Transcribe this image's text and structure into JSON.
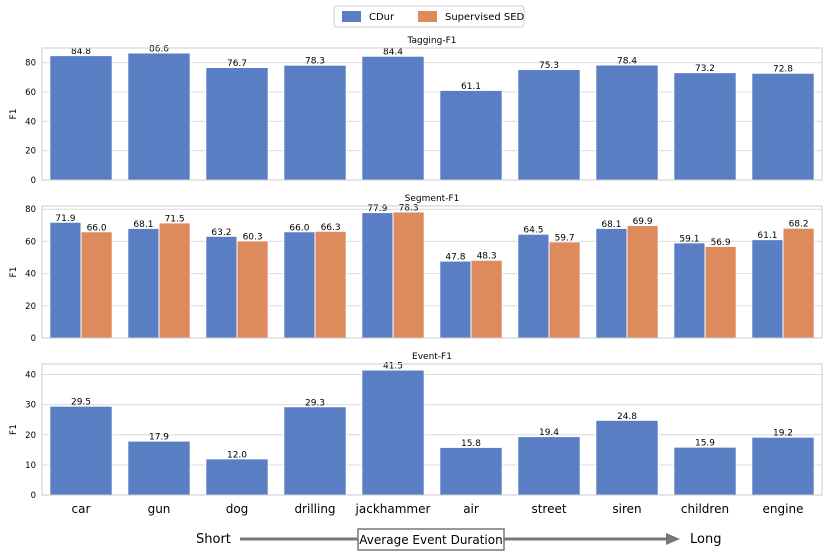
{
  "legend": {
    "items": [
      {
        "name": "CDur",
        "color": "#5a7ec3"
      },
      {
        "name": "Supervised SED",
        "color": "#dd8a5c"
      }
    ]
  },
  "duration_arrow": {
    "left_label": "Short",
    "center_label": "Average Event Duration",
    "right_label": "Long",
    "color": "#777777"
  },
  "chart_data": [
    {
      "type": "bar",
      "title": "Tagging-F1",
      "xlabel": "",
      "ylabel": "F1",
      "ylim": [
        0,
        90
      ],
      "yticks": [
        0,
        20,
        40,
        60,
        80
      ],
      "grid": true,
      "categories": [
        "car",
        "gun",
        "dog",
        "drilling",
        "jackhammer",
        "air",
        "street",
        "siren",
        "children",
        "engine"
      ],
      "series": [
        {
          "name": "CDur",
          "color": "#5a7ec3",
          "values": [
            84.8,
            86.6,
            76.7,
            78.3,
            84.4,
            61.1,
            75.3,
            78.4,
            73.2,
            72.8
          ],
          "labels": [
            "84.8",
            "86.6",
            "76.7",
            "78.3",
            "84.4",
            "61.1",
            "75.3",
            "78.4",
            "73.2",
            "72.8"
          ]
        }
      ]
    },
    {
      "type": "bar",
      "title": "Segment-F1",
      "xlabel": "",
      "ylabel": "F1",
      "ylim": [
        0,
        82
      ],
      "yticks": [
        0,
        20,
        40,
        60,
        80
      ],
      "grid": true,
      "categories": [
        "car",
        "gun",
        "dog",
        "drilling",
        "jackhammer",
        "air",
        "street",
        "siren",
        "children",
        "engine"
      ],
      "series": [
        {
          "name": "CDur",
          "color": "#5a7ec3",
          "values": [
            71.9,
            68.1,
            63.2,
            66.0,
            77.9,
            47.8,
            64.5,
            68.1,
            59.1,
            61.1
          ],
          "labels": [
            "71.9",
            "68.1",
            "63.2",
            "66.0",
            "77.9",
            "47.8",
            "64.5",
            "68.1",
            "59.1",
            "61.1"
          ]
        },
        {
          "name": "Supervised SED",
          "color": "#dd8a5c",
          "values": [
            66.0,
            71.5,
            60.3,
            66.3,
            78.3,
            48.3,
            59.7,
            69.9,
            56.9,
            68.2
          ],
          "labels": [
            "66.0",
            "71.5",
            "60.3",
            "66.3",
            "78.3",
            "48.3",
            "59.7",
            "69.9",
            "56.9",
            "68.2"
          ]
        }
      ]
    },
    {
      "type": "bar",
      "title": "Event-F1",
      "xlabel": "",
      "ylabel": "F1",
      "ylim": [
        0,
        43.5
      ],
      "yticks": [
        0,
        10,
        20,
        30,
        40
      ],
      "grid": true,
      "show_category_labels": true,
      "categories": [
        "car",
        "gun",
        "dog",
        "drilling",
        "jackhammer",
        "air",
        "street",
        "siren",
        "children",
        "engine"
      ],
      "series": [
        {
          "name": "CDur",
          "color": "#5a7ec3",
          "values": [
            29.5,
            17.9,
            12.0,
            29.3,
            41.5,
            15.8,
            19.4,
            24.8,
            15.9,
            19.2
          ],
          "labels": [
            "29.5",
            "17.9",
            "12.0",
            "29.3",
            "41.5",
            "15.8",
            "19.4",
            "24.8",
            "15.9",
            "19.2"
          ]
        }
      ]
    }
  ]
}
